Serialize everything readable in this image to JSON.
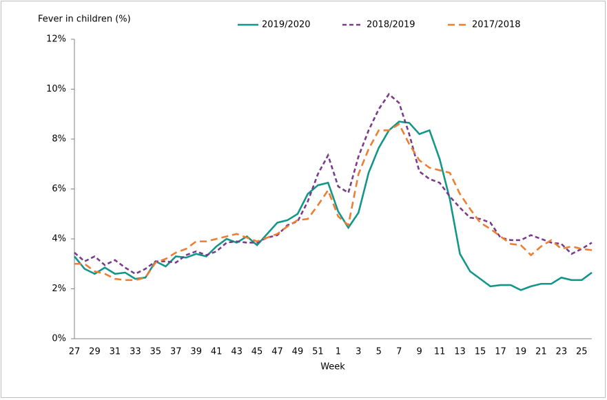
{
  "chart_data": {
    "type": "line",
    "y_axis_title": "Fever in children (%)",
    "x_axis_title": "Week",
    "categories": [
      "27",
      null,
      "29",
      null,
      "31",
      null,
      "33",
      null,
      "35",
      null,
      "37",
      null,
      "39",
      null,
      "41",
      null,
      "43",
      null,
      "45",
      null,
      "47",
      null,
      "49",
      null,
      "51",
      null,
      "1",
      null,
      "3",
      null,
      "5",
      null,
      "7",
      null,
      "9",
      null,
      "11",
      null,
      "13",
      null,
      "15",
      null,
      "17",
      null,
      "19",
      null,
      "21",
      null,
      "23",
      null,
      "25",
      null
    ],
    "ylim": [
      0,
      12
    ],
    "yticks": [
      {
        "value": 0,
        "label": "0%"
      },
      {
        "value": 2,
        "label": "2%"
      },
      {
        "value": 4,
        "label": "4%"
      },
      {
        "value": 6,
        "label": "6%"
      },
      {
        "value": 8,
        "label": "8%"
      },
      {
        "value": 10,
        "label": "10%"
      },
      {
        "value": 12,
        "label": "12%"
      }
    ],
    "grid": false,
    "series": [
      {
        "name": "2019/2020",
        "color": "#12968a",
        "line_style": "solid",
        "values": [
          3.3,
          2.8,
          2.6,
          2.85,
          2.6,
          2.65,
          2.4,
          2.45,
          3.1,
          2.9,
          3.3,
          3.25,
          3.4,
          3.3,
          3.7,
          4.0,
          3.85,
          4.1,
          3.75,
          4.2,
          4.65,
          4.75,
          5.0,
          5.8,
          6.15,
          6.25,
          5.1,
          4.45,
          5.05,
          6.65,
          7.65,
          8.35,
          8.7,
          8.65,
          8.2,
          8.35,
          7.2,
          5.6,
          3.4,
          2.7,
          2.4,
          2.1,
          2.15,
          2.15,
          1.95,
          2.1,
          2.2,
          2.2,
          2.45,
          2.35,
          2.35,
          2.65
        ]
      },
      {
        "name": "2018/2019",
        "color": "#7a3b8c",
        "line_style": "dotted",
        "values": [
          3.45,
          3.1,
          3.3,
          2.95,
          3.15,
          2.85,
          2.6,
          2.8,
          3.1,
          3.1,
          3.05,
          3.35,
          3.5,
          3.35,
          3.5,
          3.85,
          3.9,
          3.85,
          3.85,
          4.05,
          4.15,
          4.55,
          4.7,
          5.5,
          6.6,
          7.35,
          6.1,
          5.85,
          7.3,
          8.35,
          9.2,
          9.8,
          9.45,
          8.2,
          6.7,
          6.4,
          6.25,
          5.7,
          5.25,
          4.85,
          4.8,
          4.65,
          4.05,
          3.95,
          3.95,
          4.15,
          4.0,
          3.85,
          3.8,
          3.4,
          3.6,
          3.85
        ]
      },
      {
        "name": "2017/2018",
        "color": "#ed7d31",
        "line_style": "dashed",
        "values": [
          3.0,
          3.0,
          2.7,
          2.6,
          2.4,
          2.35,
          2.35,
          2.45,
          3.05,
          3.2,
          3.45,
          3.6,
          3.9,
          3.9,
          4.0,
          4.1,
          4.2,
          4.05,
          3.9,
          4.05,
          4.2,
          4.5,
          4.75,
          4.8,
          5.35,
          5.95,
          4.9,
          4.55,
          6.6,
          7.6,
          8.35,
          8.35,
          8.6,
          7.8,
          7.15,
          6.85,
          6.75,
          6.65,
          5.8,
          5.2,
          4.65,
          4.4,
          4.1,
          3.8,
          3.75,
          3.35,
          3.7,
          3.95,
          3.6,
          3.7,
          3.6,
          3.55
        ]
      }
    ]
  }
}
